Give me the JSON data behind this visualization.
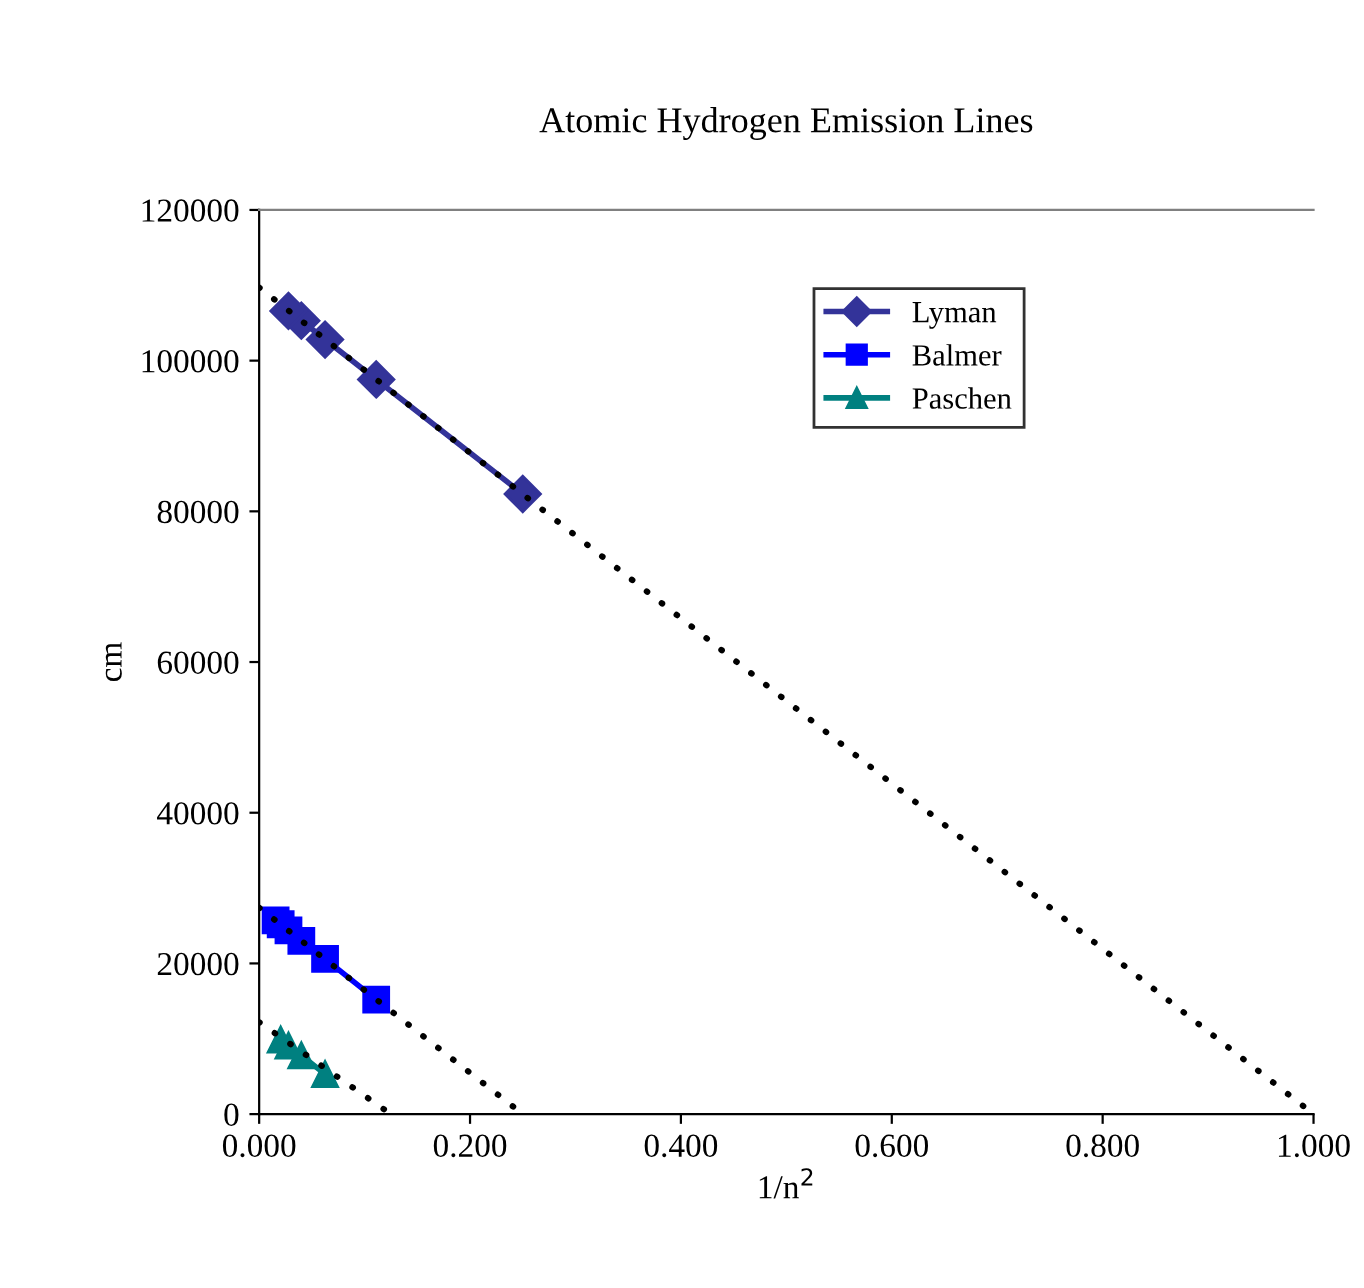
{
  "chart_data": {
    "type": "line",
    "title": "Atomic Hydrogen Emission Lines",
    "xlabel": "1/n$^{2}$",
    "ylabel": "cm",
    "series": [
      {
        "name": "Lyman",
        "color": "#333399",
        "marker": "diamond",
        "x": [
          0.25,
          0.111,
          0.0625,
          0.04,
          0.0278
        ],
        "values": [
          82300,
          97500,
          102800,
          105300,
          106600
        ]
      },
      {
        "name": "Balmer",
        "color": "#0000ff",
        "marker": "square",
        "x": [
          0.111,
          0.0625,
          0.04,
          0.0278,
          0.0204,
          0.0156
        ],
        "values": [
          15200,
          20600,
          23000,
          24400,
          25200,
          25700
        ]
      },
      {
        "name": "Paschen",
        "color": "#008080",
        "marker": "triangle",
        "x": [
          0.0625,
          0.04,
          0.0278,
          0.0204
        ],
        "values": [
          5300,
          7800,
          9100,
          9900
        ]
      },
      {
        "color": "#000000",
        "marker": "none",
        "line_style": "dotted",
        "x": [
          0,
          1.0
        ],
        "values": [
          109700,
          0
        ]
      },
      {
        "color": "#000000",
        "marker": "none",
        "line_style": "dotted",
        "x": [
          0,
          0.25
        ],
        "values": [
          27400,
          0
        ]
      },
      {
        "color": "#000000",
        "marker": "none",
        "line_style": "dotted",
        "x": [
          0,
          0.125
        ],
        "values": [
          12200,
          0
        ]
      }
    ],
    "xlim": [
      0,
      1.0
    ],
    "xticks": [
      {
        "value": 0,
        "label": "0.000"
      },
      {
        "value": 0.2,
        "label": "0.200"
      },
      {
        "value": 0.4,
        "label": "0.400"
      },
      {
        "value": 0.6,
        "label": "0.600"
      },
      {
        "value": 0.8,
        "label": "0.800"
      },
      {
        "value": 1.0,
        "label": "1.000"
      }
    ],
    "ylim": [
      0,
      120000
    ],
    "yticks": [
      0,
      20000,
      40000,
      60000,
      80000,
      100000,
      120000
    ],
    "grid": false,
    "legend": "top right"
  }
}
